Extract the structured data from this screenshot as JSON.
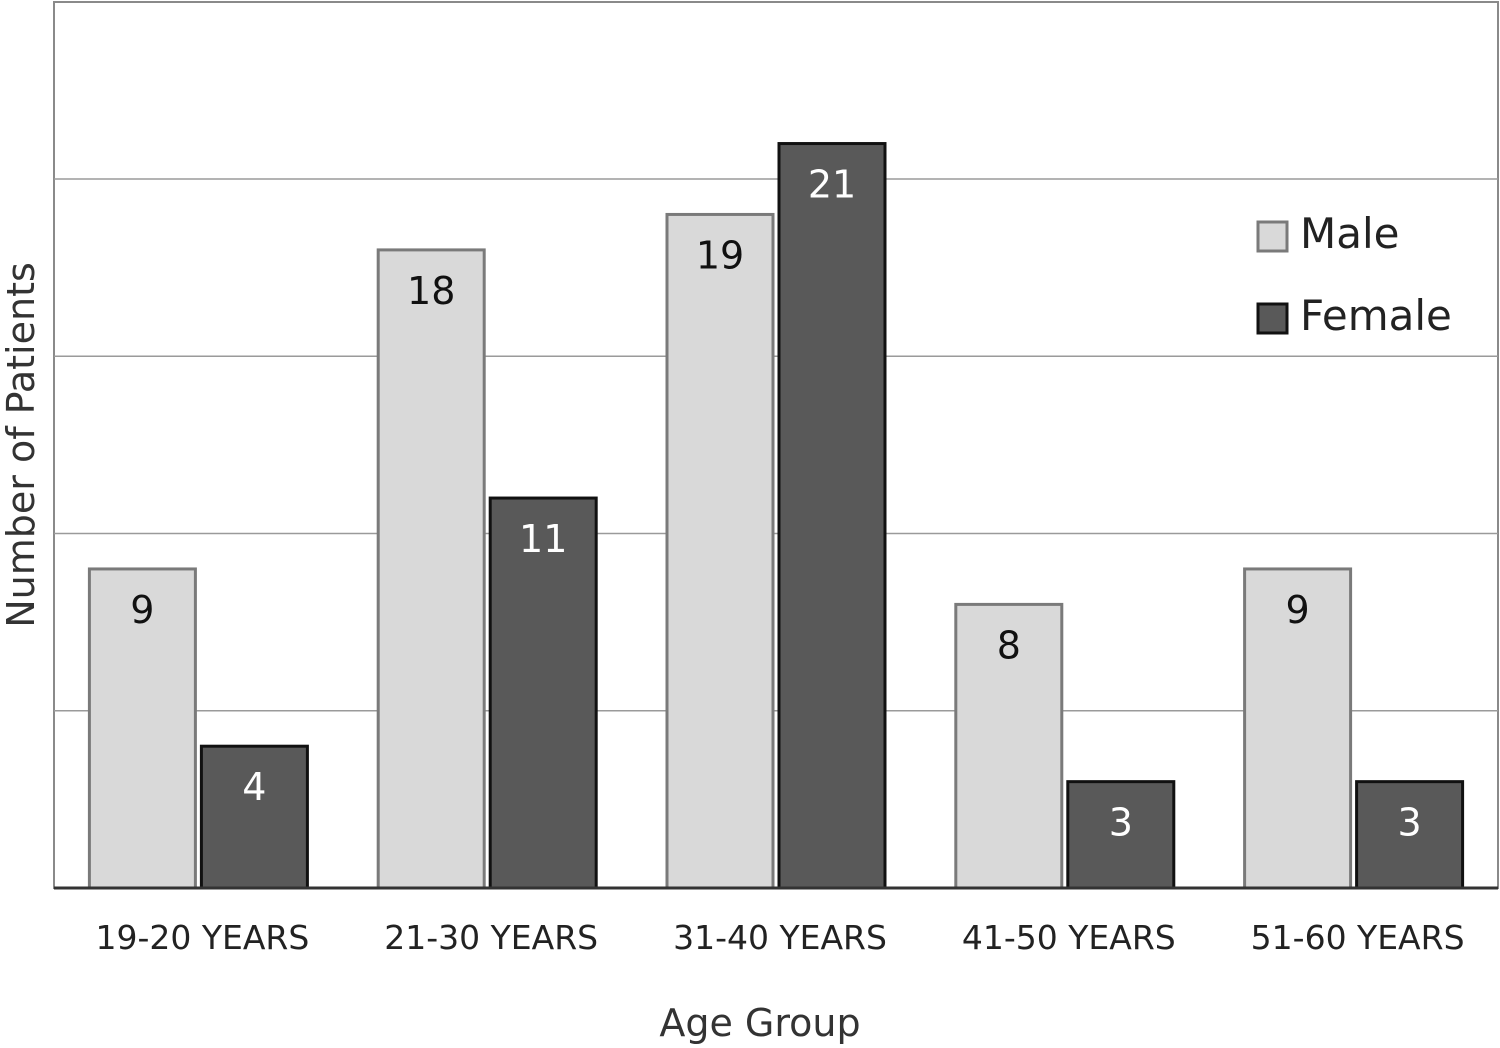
{
  "chart_data": {
    "type": "bar",
    "title": "",
    "xlabel": "Age Group",
    "ylabel": "Number of Patients",
    "categories": [
      "19-20 YEARS",
      "21-30 YEARS",
      "31-40 YEARS",
      "41-50 YEARS",
      "51-60 YEARS"
    ],
    "series": [
      {
        "name": "Male",
        "values": [
          9,
          18,
          19,
          8,
          9
        ],
        "color": "#d9d9d9",
        "stroke": "#7a7a7a",
        "label_color": "#111111"
      },
      {
        "name": "Female",
        "values": [
          4,
          11,
          21,
          3,
          3
        ],
        "color": "#595959",
        "stroke": "#111111",
        "label_color": "#ffffff"
      }
    ],
    "ylim": [
      0,
      25
    ],
    "grid": true,
    "gridlines": [
      5,
      10,
      15,
      20
    ],
    "y_tick_labels_shown": false,
    "data_labels": true,
    "legend_position": "top-right"
  }
}
